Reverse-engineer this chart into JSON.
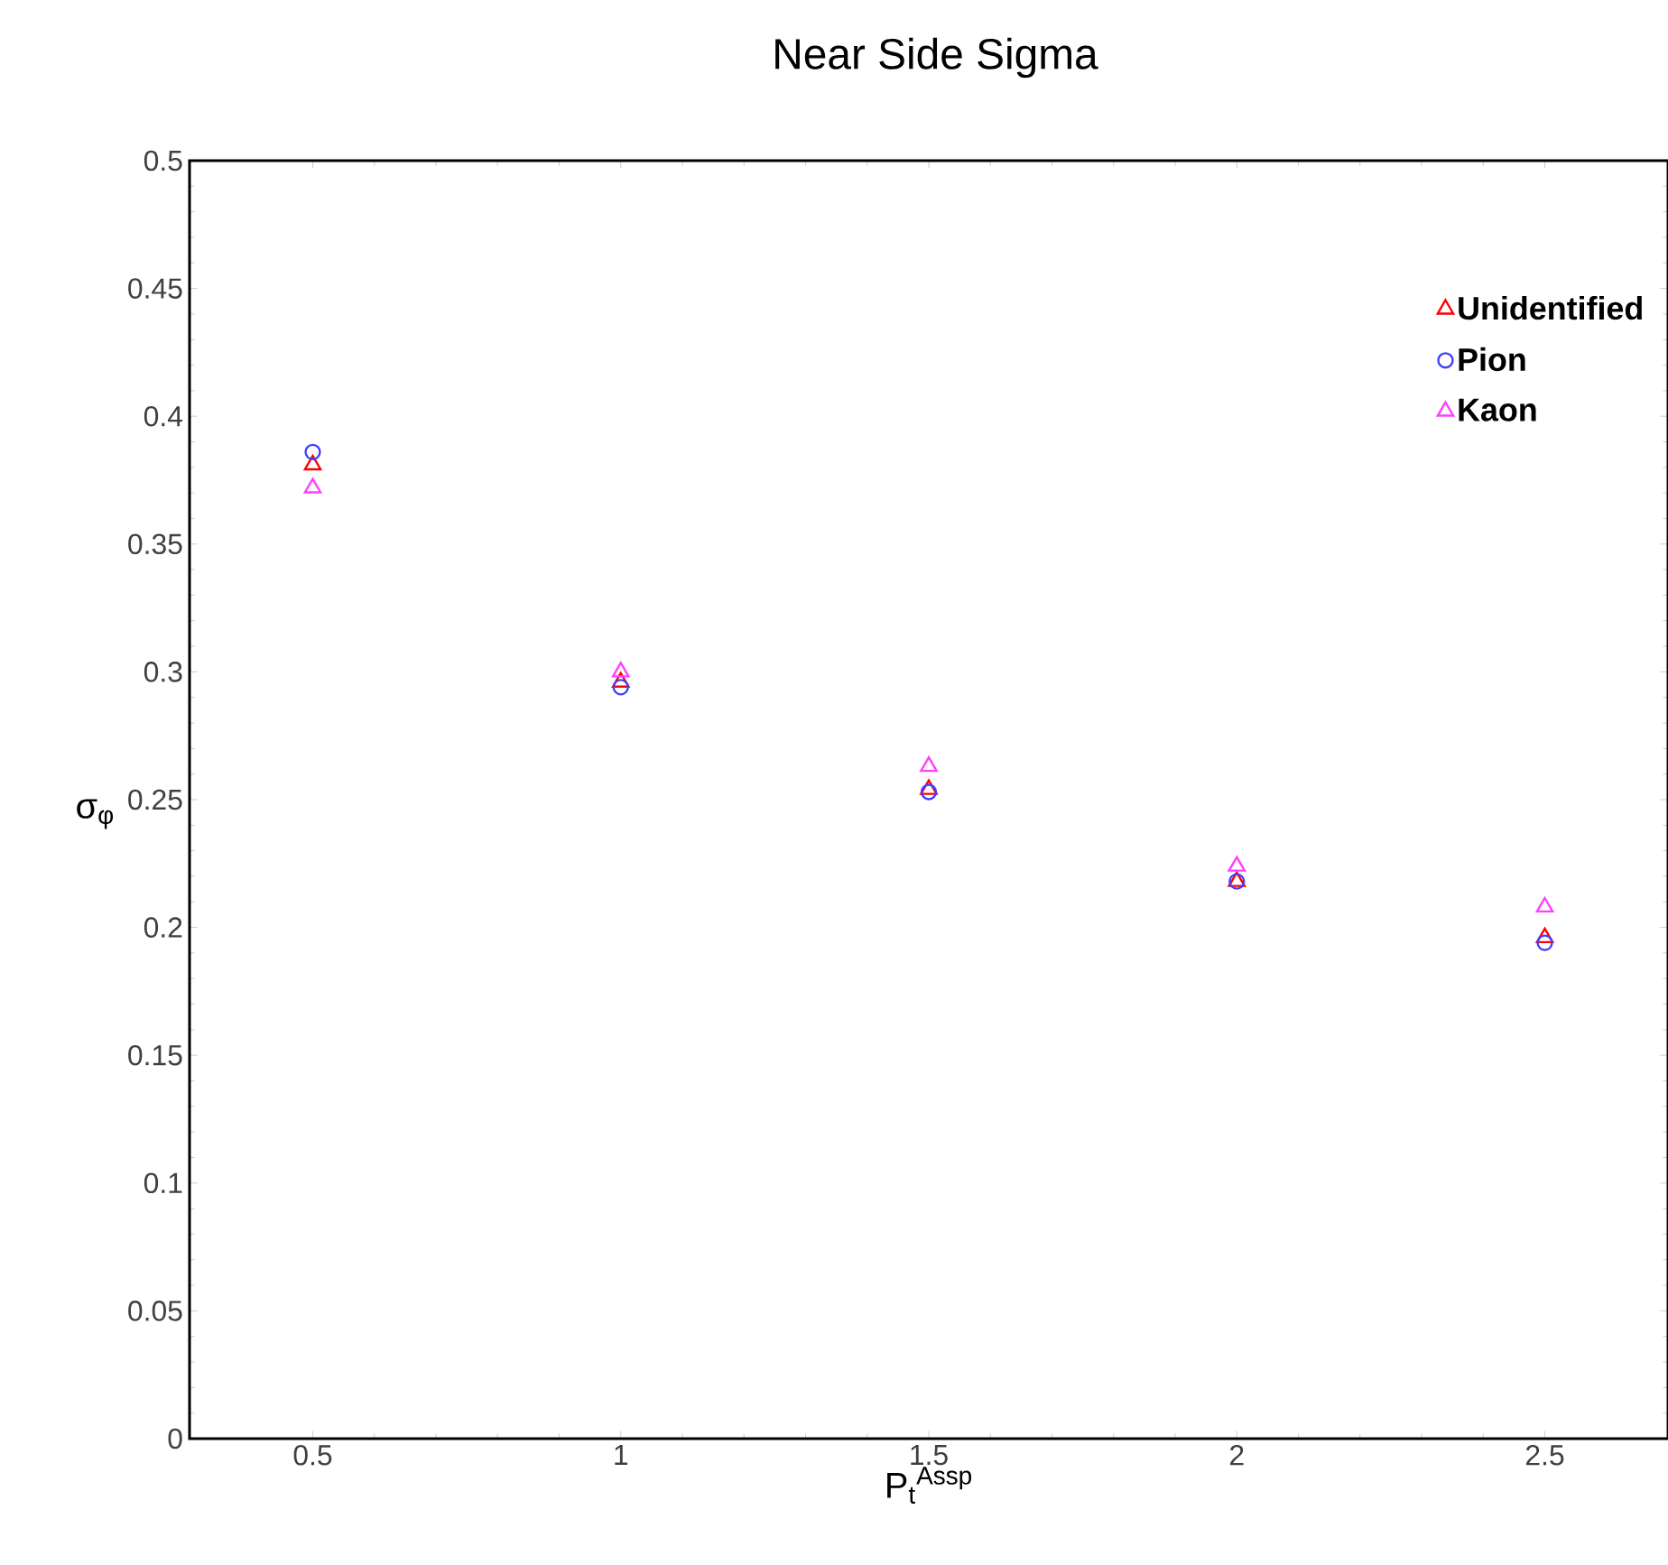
{
  "chart_data": {
    "type": "scatter",
    "title": "Near Side Sigma",
    "xlabel": "P$_{t}$$^{Assp}$",
    "ylabel": "σ$_{φ}$",
    "x": [
      0.5,
      1,
      1.5,
      2,
      2.5
    ],
    "series": [
      {
        "name": "Unidentified",
        "color": "#ff0000",
        "marker": "triangle",
        "values": [
          0.381,
          0.296,
          0.254,
          0.218,
          0.196
        ]
      },
      {
        "name": "Pion",
        "color": "#4040ff",
        "marker": "circle",
        "values": [
          0.386,
          0.294,
          0.253,
          0.218,
          0.194
        ]
      },
      {
        "name": "Kaon",
        "color": "#ff40ff",
        "marker": "triangle",
        "values": [
          0.372,
          0.3,
          0.263,
          0.224,
          0.208
        ]
      }
    ],
    "xlim": [
      0.3,
      2.7
    ],
    "ylim": [
      0,
      0.5
    ],
    "xticks": [
      0.5,
      1,
      1.5,
      2,
      2.5
    ],
    "yticks": [
      0,
      0.05,
      0.1,
      0.15,
      0.2,
      0.25,
      0.3,
      0.35,
      0.4,
      0.45,
      0.5
    ],
    "grid": false,
    "legend": "top right"
  }
}
